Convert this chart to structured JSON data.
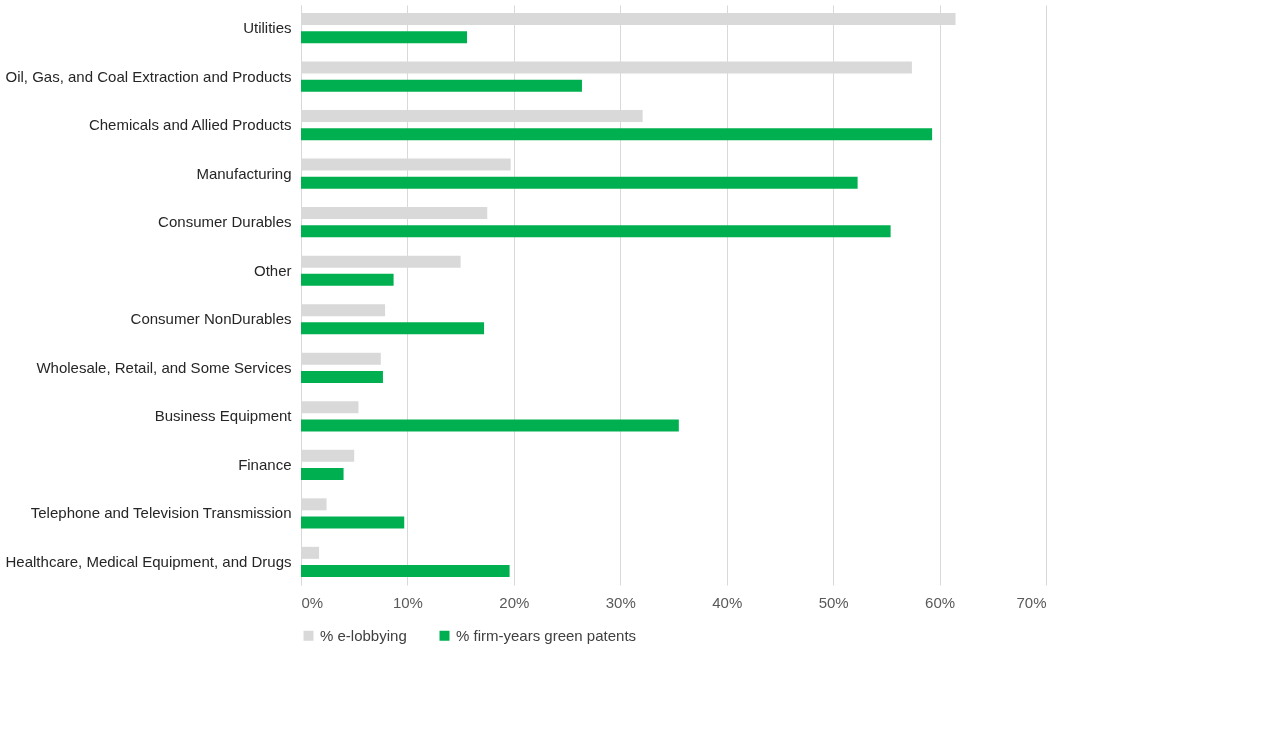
{
  "chart_data": {
    "type": "bar",
    "orientation": "horizontal",
    "categories": [
      "Utilities",
      "Oil, Gas, and Coal Extraction and Products",
      "Chemicals and Allied Products",
      "Manufacturing",
      "Consumer Durables",
      "Other",
      "Consumer NonDurables",
      "Wholesale, Retail, and Some Services",
      "Business Equipment",
      "Finance",
      "Telephone and Television Transmission",
      "Healthcare, Medical Equipment, and Drugs"
    ],
    "series": [
      {
        "name": "% e-lobbying",
        "color": "#d9d9d9",
        "values": [
          61.5,
          57.4,
          32.1,
          19.7,
          17.5,
          15.0,
          7.9,
          7.5,
          5.4,
          5.0,
          2.4,
          1.7
        ]
      },
      {
        "name": "% firm-years green patents",
        "color": "#00b050",
        "values": [
          15.6,
          26.4,
          59.3,
          52.3,
          55.4,
          8.7,
          17.2,
          7.7,
          35.5,
          4.0,
          9.7,
          19.6
        ]
      }
    ],
    "xlim": [
      0,
      70
    ],
    "xticks": [
      {
        "value": 0,
        "label": "0%"
      },
      {
        "value": 10,
        "label": "10%"
      },
      {
        "value": 20,
        "label": "20%"
      },
      {
        "value": 30,
        "label": "30%"
      },
      {
        "value": 40,
        "label": "40%"
      },
      {
        "value": 50,
        "label": "50%"
      },
      {
        "value": 60,
        "label": "60%"
      },
      {
        "value": 70,
        "label": "70%"
      }
    ],
    "grid": "x",
    "legend": "bottom"
  }
}
